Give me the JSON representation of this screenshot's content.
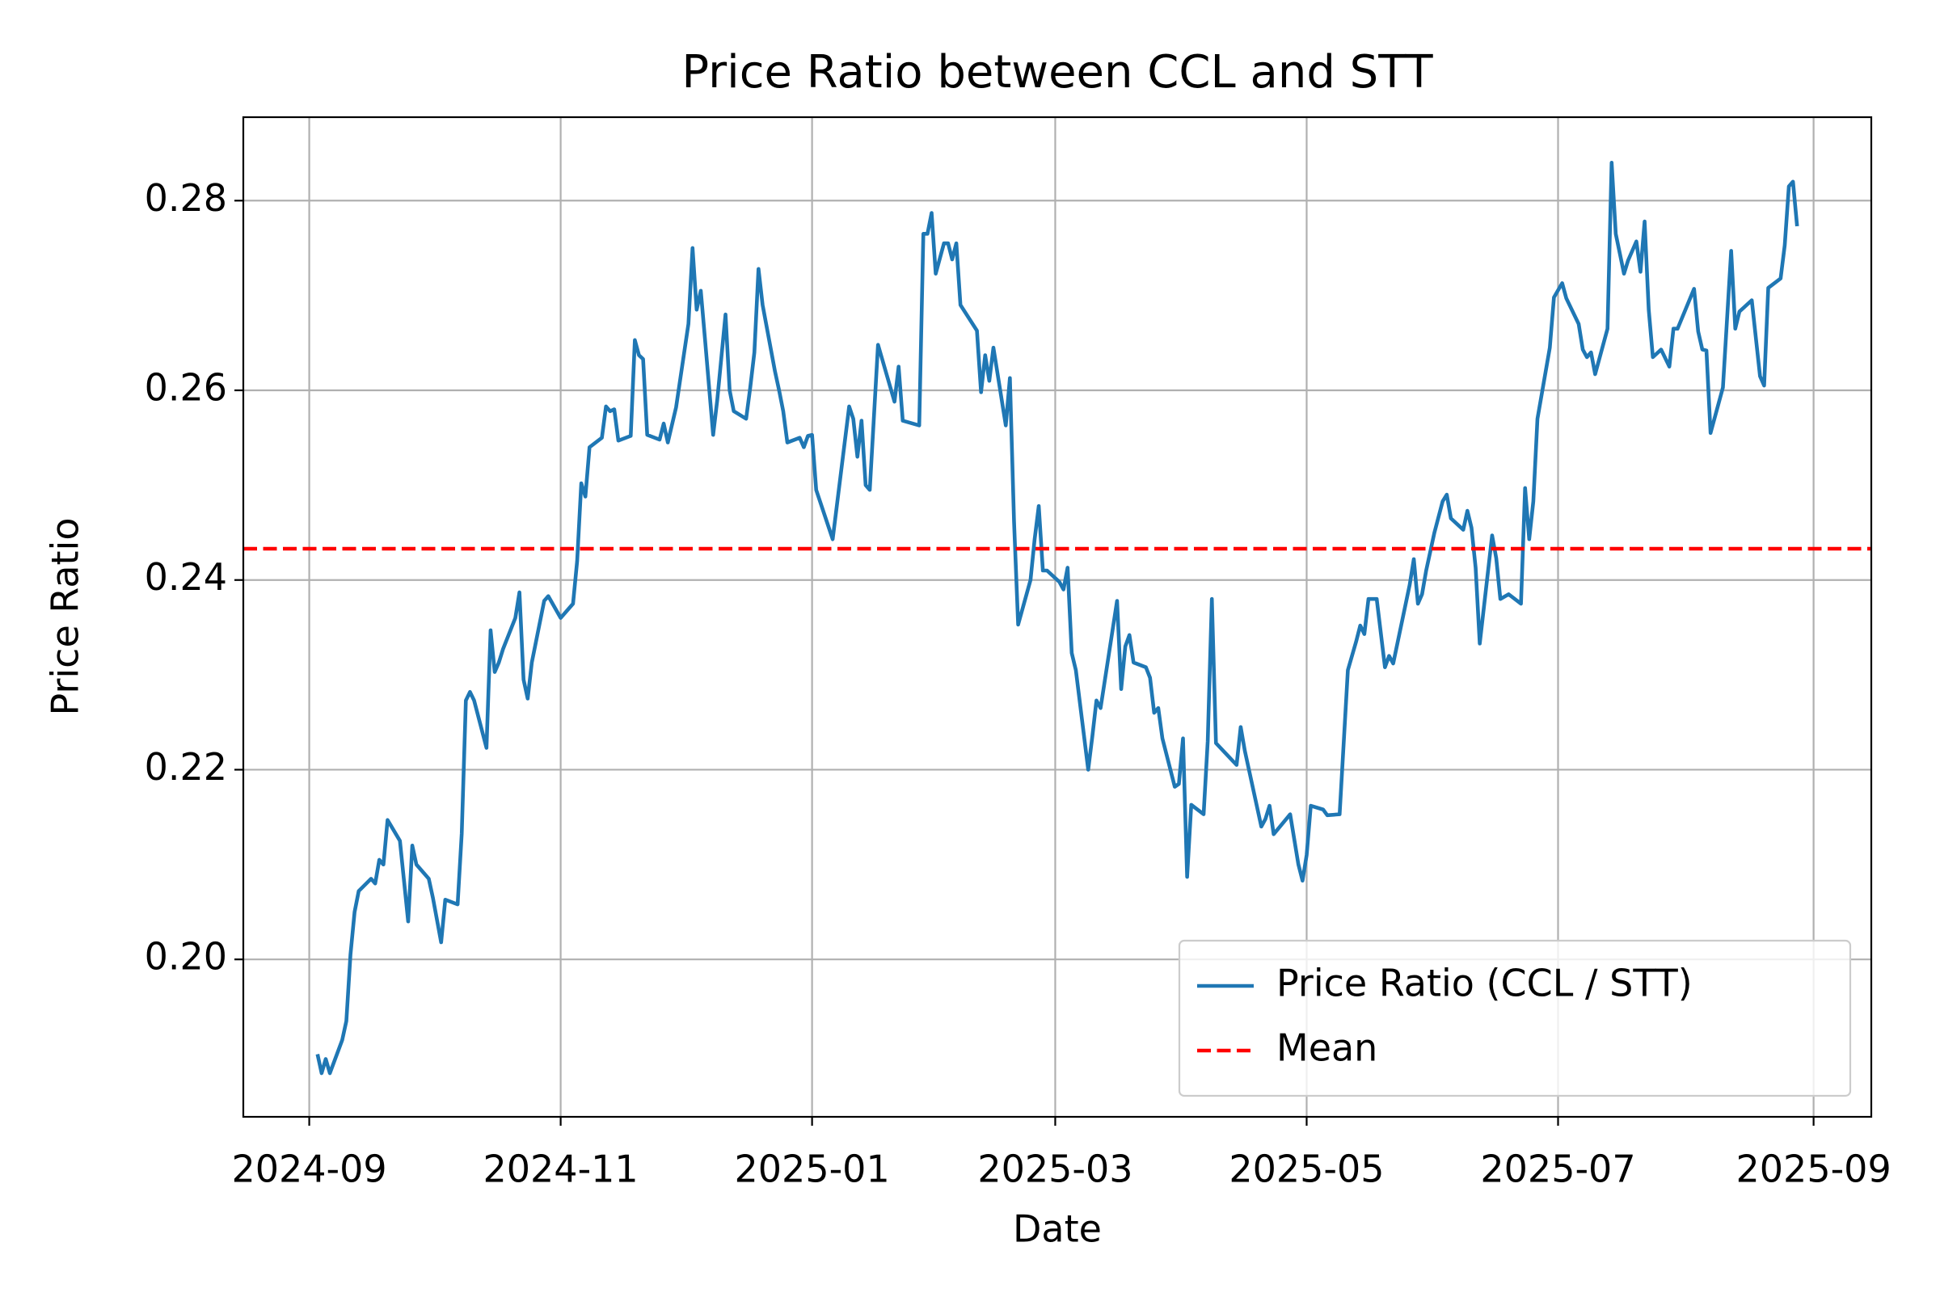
{
  "chart_data": {
    "type": "line",
    "title": "Price Ratio between CCL and STT",
    "x_label": "Date",
    "y_label": "Price Ratio",
    "xlim": [
      -16,
      379
    ],
    "xticks": [
      {
        "value": 0,
        "label": "2024-09"
      },
      {
        "value": 61,
        "label": "2024-11"
      },
      {
        "value": 122,
        "label": "2025-01"
      },
      {
        "value": 181,
        "label": "2025-03"
      },
      {
        "value": 242,
        "label": "2025-05"
      },
      {
        "value": 303,
        "label": "2025-07"
      },
      {
        "value": 365,
        "label": "2025-09"
      }
    ],
    "ylim": [
      0.1834,
      0.2888
    ],
    "yticks": [
      {
        "value": 0.2,
        "label": "0.20"
      },
      0.22,
      0.24,
      0.26,
      0.28
    ],
    "grid": true,
    "legend": "lower right",
    "series": [
      {
        "name": "Price Ratio (CCL / STT)",
        "color": "#1f77b4",
        "x": [
          2,
          3,
          4,
          5,
          8,
          9,
          10,
          11,
          12,
          15,
          16,
          17,
          18,
          19,
          22,
          24,
          25,
          26,
          29,
          30,
          32,
          33,
          36,
          37,
          38,
          39,
          40,
          43,
          44,
          45,
          46,
          47,
          50,
          51,
          52,
          53,
          54,
          57,
          58,
          61,
          64,
          65,
          66,
          67,
          68,
          71,
          72,
          73,
          74,
          75,
          78,
          79,
          80,
          81,
          82,
          85,
          86,
          87,
          89,
          92,
          93,
          94,
          95,
          96,
          98,
          99,
          101,
          102,
          103,
          106,
          107,
          108,
          109,
          110,
          113,
          114,
          115,
          116,
          119,
          120,
          121,
          122,
          123,
          127,
          128,
          131,
          132,
          133,
          134,
          135,
          136,
          138,
          142,
          143,
          144,
          148,
          149,
          150,
          151,
          152,
          154,
          155,
          156,
          157,
          158,
          162,
          163,
          164,
          165,
          166,
          169,
          170,
          171,
          172,
          175,
          176,
          177,
          178,
          179,
          182,
          183,
          184,
          185,
          186,
          189,
          190,
          191,
          192,
          196,
          197,
          198,
          199,
          200,
          203,
          204,
          205,
          206,
          207,
          210,
          211,
          212,
          213,
          214,
          217,
          218,
          219,
          220,
          225,
          226,
          227,
          231,
          232,
          233,
          234,
          238,
          240,
          241,
          242,
          243,
          246,
          247,
          250,
          252,
          254,
          255,
          256,
          257,
          259,
          261,
          262,
          263,
          267,
          268,
          269,
          270,
          271,
          273,
          275,
          276,
          277,
          280,
          281,
          282,
          283,
          284,
          287,
          288,
          289,
          291,
          294,
          295,
          296,
          297,
          298,
          301,
          302,
          304,
          305,
          308,
          309,
          310,
          311,
          312,
          315,
          316,
          317,
          319,
          320,
          322,
          323,
          324,
          325,
          326,
          328,
          330,
          331,
          332,
          336,
          337,
          338,
          339,
          340,
          343,
          345,
          346,
          347,
          350,
          352,
          353,
          354,
          357,
          358,
          359,
          360,
          361
        ],
        "values": [
          0.19,
          0.188,
          0.1895,
          0.188,
          0.1915,
          0.1935,
          0.2005,
          0.205,
          0.2072,
          0.2085,
          0.208,
          0.2105,
          0.21,
          0.2147,
          0.2125,
          0.204,
          0.212,
          0.21,
          0.2085,
          0.2065,
          0.2018,
          0.2063,
          0.2058,
          0.2133,
          0.2273,
          0.2282,
          0.2273,
          0.2223,
          0.2347,
          0.2303,
          0.2313,
          0.2327,
          0.236,
          0.2387,
          0.2295,
          0.2275,
          0.2313,
          0.2378,
          0.2383,
          0.236,
          0.2375,
          0.242,
          0.2502,
          0.2488,
          0.254,
          0.255,
          0.2583,
          0.2578,
          0.258,
          0.2547,
          0.2552,
          0.2653,
          0.2637,
          0.2633,
          0.2553,
          0.2548,
          0.2565,
          0.2545,
          0.2582,
          0.267,
          0.275,
          0.2685,
          0.2705,
          0.2655,
          0.2553,
          0.259,
          0.268,
          0.26,
          0.2578,
          0.257,
          0.2603,
          0.264,
          0.2728,
          0.269,
          0.262,
          0.26,
          0.2578,
          0.2545,
          0.255,
          0.254,
          0.2552,
          0.2553,
          0.2495,
          0.2443,
          0.2478,
          0.2583,
          0.257,
          0.253,
          0.2568,
          0.25,
          0.2495,
          0.2648,
          0.2588,
          0.2625,
          0.2568,
          0.2563,
          0.2765,
          0.2765,
          0.2787,
          0.2723,
          0.2755,
          0.2755,
          0.2738,
          0.2755,
          0.269,
          0.2663,
          0.2598,
          0.2637,
          0.261,
          0.2645,
          0.2563,
          0.2613,
          0.2462,
          0.2353,
          0.24,
          0.2443,
          0.2478,
          0.241,
          0.241,
          0.2398,
          0.239,
          0.2413,
          0.2323,
          0.2305,
          0.22,
          0.2235,
          0.2273,
          0.2265,
          0.2378,
          0.2285,
          0.233,
          0.2342,
          0.2313,
          0.2308,
          0.2297,
          0.226,
          0.2265,
          0.2233,
          0.2182,
          0.2185,
          0.2233,
          0.2087,
          0.2163,
          0.2153,
          0.223,
          0.238,
          0.2228,
          0.2205,
          0.2245,
          0.222,
          0.214,
          0.2148,
          0.2162,
          0.2132,
          0.2153,
          0.21,
          0.2083,
          0.211,
          0.2162,
          0.2158,
          0.2152,
          0.2153,
          0.2305,
          0.2335,
          0.2352,
          0.2343,
          0.238,
          0.238,
          0.2308,
          0.232,
          0.2312,
          0.2395,
          0.2422,
          0.2375,
          0.2385,
          0.241,
          0.245,
          0.2483,
          0.249,
          0.2465,
          0.2453,
          0.2473,
          0.2455,
          0.2413,
          0.2333,
          0.2447,
          0.2423,
          0.238,
          0.2385,
          0.2375,
          0.2497,
          0.2443,
          0.2483,
          0.257,
          0.2645,
          0.2698,
          0.2713,
          0.2697,
          0.267,
          0.2643,
          0.2635,
          0.264,
          0.2617,
          0.2665,
          0.284,
          0.2765,
          0.2723,
          0.2737,
          0.2757,
          0.2725,
          0.2778,
          0.2685,
          0.2635,
          0.2643,
          0.2625,
          0.2665,
          0.2665,
          0.2707,
          0.2662,
          0.2643,
          0.2642,
          0.2555,
          0.2603,
          0.2747,
          0.2665,
          0.2683,
          0.2695,
          0.2615,
          0.2605,
          0.2708,
          0.2718,
          0.2753,
          0.2815,
          0.282,
          0.2773
        ]
      }
    ],
    "mean": {
      "name": "Mean",
      "color": "#ff0000",
      "linestyle": "dashed",
      "value": 0.2433
    }
  }
}
